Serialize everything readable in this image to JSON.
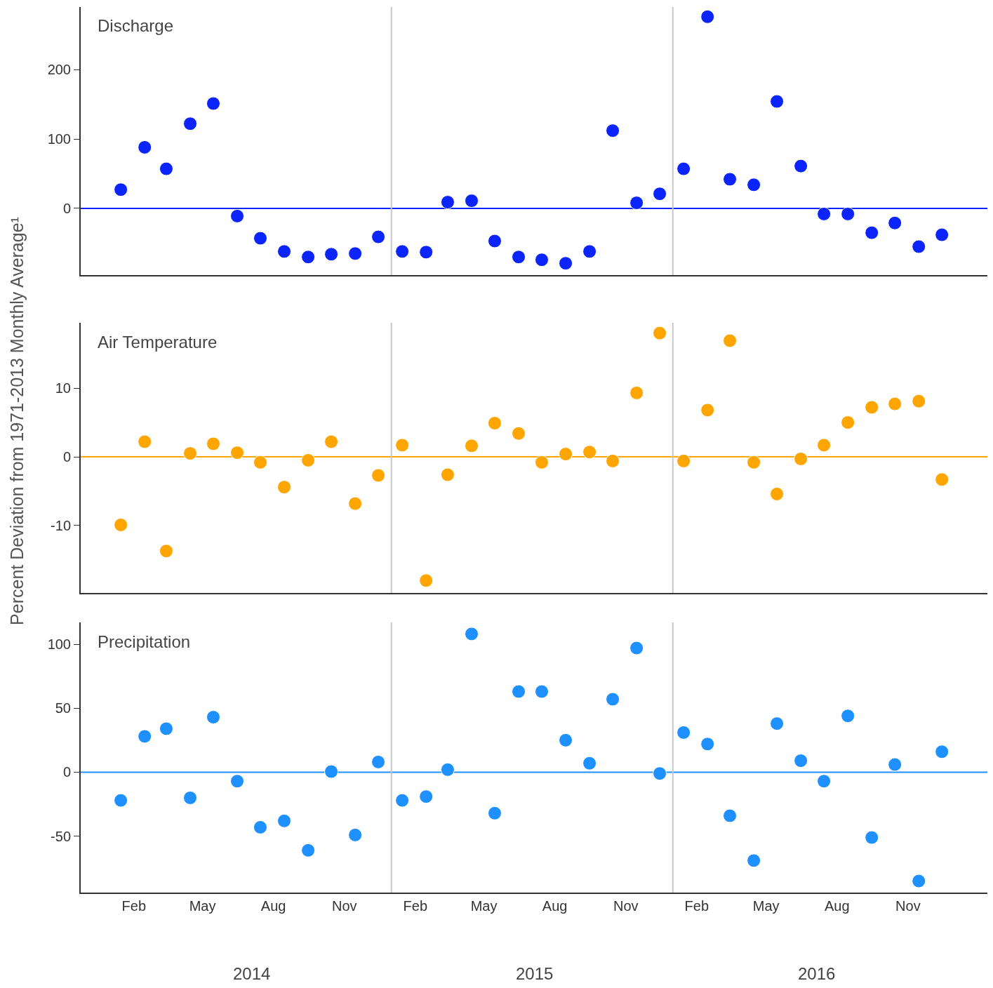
{
  "chart_data": [
    {
      "type": "scatter",
      "title": "Discharge",
      "x": [
        "2014-01-15",
        "2014-02-15",
        "2014-03-15",
        "2014-04-15",
        "2014-05-15",
        "2014-06-15",
        "2014-07-15",
        "2014-08-15",
        "2014-09-15",
        "2014-10-15",
        "2014-11-15",
        "2014-12-15",
        "2015-01-15",
        "2015-02-15",
        "2015-03-15",
        "2015-04-15",
        "2015-05-15",
        "2015-06-15",
        "2015-07-15",
        "2015-08-15",
        "2015-09-15",
        "2015-10-15",
        "2015-11-15",
        "2015-12-15",
        "2016-01-15",
        "2016-02-15",
        "2016-03-15",
        "2016-04-15",
        "2016-05-15",
        "2016-06-15",
        "2016-07-15",
        "2016-08-15",
        "2016-09-15",
        "2016-10-15",
        "2016-11-15",
        "2016-12-15"
      ],
      "series": [
        {
          "color": "#0b24fb",
          "values": [
            27,
            88,
            57,
            122,
            151,
            -11,
            -43,
            -62,
            -70,
            -66,
            -65,
            -41,
            -62,
            -63,
            9,
            11,
            -47,
            -70,
            -74,
            -79,
            -62,
            112,
            8,
            21,
            57,
            276,
            42,
            34,
            154,
            61,
            -8,
            -8,
            -35,
            -21,
            -55,
            -38
          ]
        }
      ],
      "xlim": [
        "2013-11-24",
        "2017-02-12"
      ],
      "ylim": [
        -96,
        290
      ],
      "yticks": [
        0,
        100,
        200
      ],
      "tick_labels": "y",
      "grid": false,
      "marker": "circle",
      "ref_lines": [
        {
          "axis": "y",
          "value": 0,
          "color": "#0b24fb"
        },
        {
          "axis": "x",
          "value": "2015-01-01",
          "color": "#c8c8c8"
        },
        {
          "axis": "x",
          "value": "2016-01-01",
          "color": "#c8c8c8"
        }
      ]
    },
    {
      "type": "scatter",
      "title": "Air Temperature",
      "ylabel": "Percent Deviation from 1971-2013 Monthly Average¹",
      "x": [
        "2014-01-15",
        "2014-02-15",
        "2014-03-15",
        "2014-04-15",
        "2014-05-15",
        "2014-06-15",
        "2014-07-15",
        "2014-08-15",
        "2014-09-15",
        "2014-10-15",
        "2014-11-15",
        "2014-12-15",
        "2015-01-15",
        "2015-02-15",
        "2015-03-15",
        "2015-04-15",
        "2015-05-15",
        "2015-06-15",
        "2015-07-15",
        "2015-08-15",
        "2015-09-15",
        "2015-10-15",
        "2015-11-15",
        "2015-12-15",
        "2016-01-15",
        "2016-02-15",
        "2016-03-15",
        "2016-04-15",
        "2016-05-15",
        "2016-06-15",
        "2016-07-15",
        "2016-08-15",
        "2016-09-15",
        "2016-10-15",
        "2016-11-15",
        "2016-12-15"
      ],
      "series": [
        {
          "color": "#ffa500",
          "values": [
            -9.9,
            2.2,
            -13.7,
            0.5,
            1.9,
            0.6,
            -0.8,
            -4.4,
            -0.5,
            2.2,
            -6.8,
            -2.7,
            1.7,
            -18,
            -2.6,
            1.6,
            4.9,
            3.4,
            -0.8,
            0.4,
            0.7,
            -0.6,
            9.3,
            18,
            -0.6,
            6.8,
            16.9,
            -0.8,
            -5.4,
            -0.3,
            1.7,
            5,
            7.2,
            7.7,
            8.1,
            -3.3
          ]
        }
      ],
      "xlim": [
        "2013-11-24",
        "2017-02-12"
      ],
      "ylim": [
        -19.8,
        19.5
      ],
      "yticks": [
        -10,
        0,
        10
      ],
      "tick_labels": "y",
      "grid": false,
      "marker": "circle",
      "ref_lines": [
        {
          "axis": "y",
          "value": 0,
          "color": "#ffa500"
        },
        {
          "axis": "x",
          "value": "2015-01-01",
          "color": "#c8c8c8"
        },
        {
          "axis": "x",
          "value": "2016-01-01",
          "color": "#c8c8c8"
        }
      ]
    },
    {
      "type": "scatter",
      "title": "Precipitation",
      "x": [
        "2014-01-15",
        "2014-02-15",
        "2014-03-15",
        "2014-04-15",
        "2014-05-15",
        "2014-06-15",
        "2014-07-15",
        "2014-08-15",
        "2014-09-15",
        "2014-10-15",
        "2014-11-15",
        "2014-12-15",
        "2015-01-15",
        "2015-02-15",
        "2015-03-15",
        "2015-04-15",
        "2015-05-15",
        "2015-06-15",
        "2015-07-15",
        "2015-08-15",
        "2015-09-15",
        "2015-10-15",
        "2015-11-15",
        "2015-12-15",
        "2016-01-15",
        "2016-02-15",
        "2016-03-15",
        "2016-04-15",
        "2016-05-15",
        "2016-06-15",
        "2016-07-15",
        "2016-08-15",
        "2016-09-15",
        "2016-10-15",
        "2016-11-15",
        "2016-12-15"
      ],
      "series": [
        {
          "color": "#1e90ff",
          "values": [
            -22,
            28,
            34,
            -20,
            43,
            -7,
            -43,
            -38,
            -61,
            0.5,
            -49,
            8,
            -22,
            -19,
            2,
            108,
            -32,
            63,
            63,
            25,
            7,
            57,
            97,
            -1,
            31,
            22,
            -34,
            -69,
            38,
            9,
            -7,
            44,
            -51,
            6,
            -85,
            16
          ]
        }
      ],
      "xlim": [
        "2013-11-24",
        "2017-02-12"
      ],
      "ylim": [
        -94,
        117
      ],
      "yticks": [
        -50,
        0,
        50,
        100
      ],
      "grid": false,
      "marker": "circle",
      "xticks": [
        {
          "value": "2014-02-01",
          "label": "Feb"
        },
        {
          "value": "2014-05-01",
          "label": "May"
        },
        {
          "value": "2014-08-01",
          "label": "Aug"
        },
        {
          "value": "2014-11-01",
          "label": "Nov"
        },
        {
          "value": "2015-02-01",
          "label": "Feb"
        },
        {
          "value": "2015-05-01",
          "label": "May"
        },
        {
          "value": "2015-08-01",
          "label": "Aug"
        },
        {
          "value": "2015-11-01",
          "label": "Nov"
        },
        {
          "value": "2016-02-01",
          "label": "Feb"
        },
        {
          "value": "2016-05-01",
          "label": "May"
        },
        {
          "value": "2016-08-01",
          "label": "Aug"
        },
        {
          "value": "2016-11-01",
          "label": "Nov"
        }
      ],
      "annotations": [
        "2014",
        "2015",
        "2016"
      ],
      "ref_lines": [
        {
          "axis": "y",
          "value": 0,
          "color": "#1e90ff"
        },
        {
          "axis": "x",
          "value": "2015-01-01",
          "color": "#c8c8c8"
        },
        {
          "axis": "x",
          "value": "2016-01-01",
          "color": "#c8c8c8"
        }
      ]
    }
  ]
}
